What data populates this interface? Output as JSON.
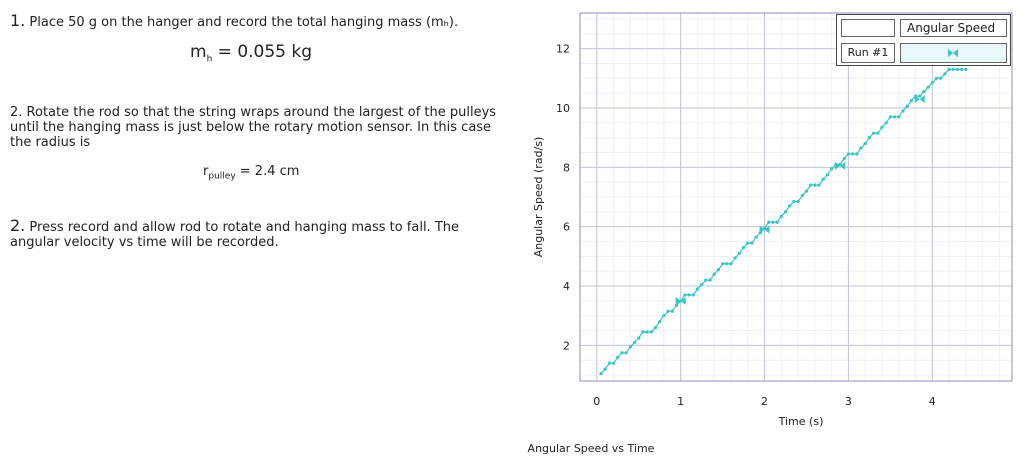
{
  "instructions": {
    "step1": {
      "number": "1.",
      "text": "Place 50 g on the hanger and record the total hanging mass (mₕ)."
    },
    "mass_equation": {
      "symbol": "m",
      "subscript": "h",
      "rest": " = 0.055 kg"
    },
    "step2": {
      "number": "2.",
      "text": "Rotate the rod so that the string wraps around the largest of the pulleys until the hanging mass is just below the rotary motion sensor. In this case the radius is"
    },
    "radius_equation": {
      "symbol": "r",
      "subscript": "pulley",
      "rest": " = 2.4 cm"
    },
    "step3": {
      "number": "2.",
      "text": "Press record and allow rod to rotate and hanging mass to fall.  The angular velocity vs time will be recorded."
    }
  },
  "legend": {
    "column_header": "Angular Speed",
    "run_label": "Run #1",
    "color": "#3cc4c4"
  },
  "chart_data": {
    "type": "scatter",
    "title": "Angular Speed vs Time",
    "xlabel": "Time (s)",
    "ylabel": "Angular Speed (rad/s)",
    "xlim": [
      -0.2,
      4.95
    ],
    "ylim": [
      0.8,
      13.2
    ],
    "xticks": [
      0,
      1,
      2,
      3,
      4
    ],
    "yticks": [
      2,
      4,
      6,
      8,
      10,
      12
    ],
    "grid": true,
    "legend_position": "top-right",
    "series": [
      {
        "name": "Run #1",
        "color": "#3cc4c4",
        "x": [
          0.05,
          0.1,
          0.15,
          0.2,
          0.25,
          0.3,
          0.35,
          0.4,
          0.45,
          0.5,
          0.55,
          0.6,
          0.65,
          0.7,
          0.75,
          0.8,
          0.85,
          0.9,
          0.95,
          1.0,
          1.05,
          1.1,
          1.15,
          1.2,
          1.25,
          1.3,
          1.35,
          1.4,
          1.45,
          1.5,
          1.55,
          1.6,
          1.65,
          1.7,
          1.75,
          1.8,
          1.85,
          1.9,
          1.95,
          2.0,
          2.05,
          2.1,
          2.15,
          2.2,
          2.25,
          2.3,
          2.35,
          2.4,
          2.45,
          2.5,
          2.55,
          2.6,
          2.65,
          2.7,
          2.75,
          2.8,
          2.85,
          2.9,
          2.95,
          3.0,
          3.05,
          3.1,
          3.15,
          3.2,
          3.25,
          3.3,
          3.35,
          3.4,
          3.45,
          3.5,
          3.55,
          3.6,
          3.65,
          3.7,
          3.75,
          3.8,
          3.85,
          3.9,
          3.95,
          4.0,
          4.05,
          4.1,
          4.15,
          4.2,
          4.25,
          4.3,
          4.35,
          4.4
        ],
        "y": [
          1.05,
          1.2,
          1.4,
          1.4,
          1.6,
          1.75,
          1.75,
          1.95,
          2.1,
          2.25,
          2.45,
          2.45,
          2.45,
          2.6,
          2.8,
          3.0,
          3.15,
          3.15,
          3.35,
          3.5,
          3.7,
          3.7,
          3.7,
          3.9,
          4.05,
          4.2,
          4.2,
          4.4,
          4.55,
          4.75,
          4.75,
          4.75,
          4.95,
          5.1,
          5.3,
          5.45,
          5.45,
          5.65,
          5.8,
          5.95,
          6.15,
          6.15,
          6.15,
          6.35,
          6.5,
          6.7,
          6.85,
          6.85,
          7.05,
          7.2,
          7.4,
          7.4,
          7.4,
          7.6,
          7.75,
          7.95,
          8.1,
          8.1,
          8.3,
          8.45,
          8.45,
          8.45,
          8.65,
          8.8,
          9.0,
          9.15,
          9.15,
          9.35,
          9.5,
          9.7,
          9.7,
          9.7,
          9.9,
          10.05,
          10.25,
          10.4,
          10.4,
          10.55,
          10.7,
          10.85,
          11.0,
          11.0,
          11.15,
          11.3,
          11.3,
          11.3,
          11.3,
          11.3
        ],
        "markers": [
          {
            "x": 1.0,
            "y": 3.5
          },
          {
            "x": 2.0,
            "y": 5.9
          },
          {
            "x": 2.9,
            "y": 8.05
          },
          {
            "x": 3.85,
            "y": 10.3
          }
        ]
      }
    ]
  }
}
